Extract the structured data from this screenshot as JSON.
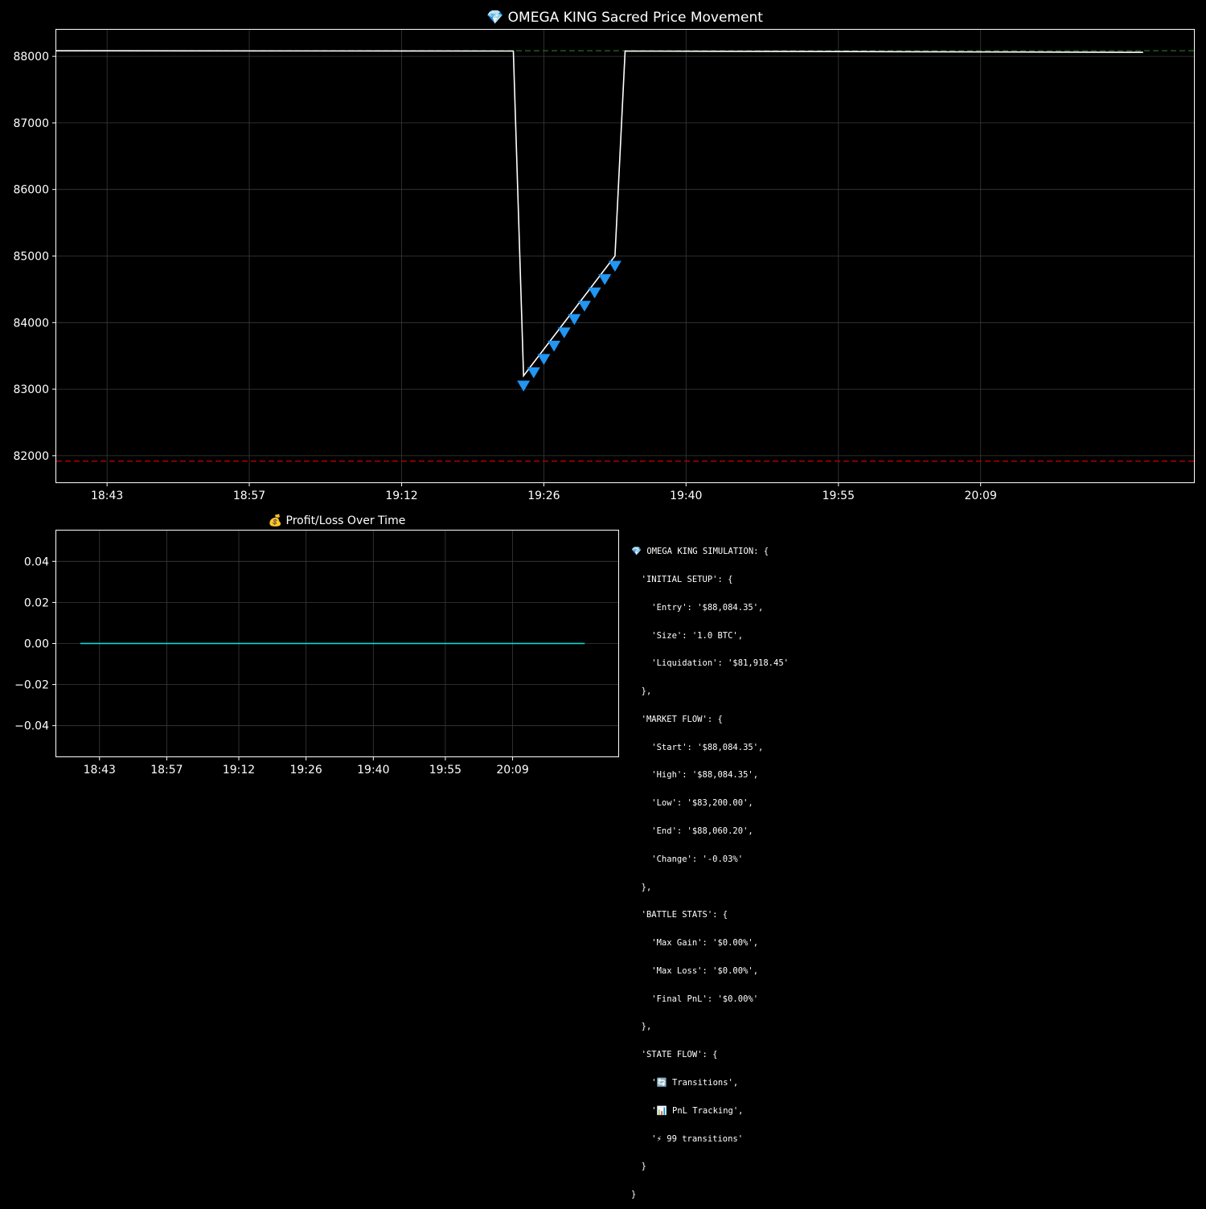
{
  "colors": {
    "background": "#000000",
    "price_line": "#ffffff",
    "entry_line": "#1f5c1f",
    "liquidation_line": "#b00000",
    "sell_marker": "#2196f3",
    "pnl_line": "#00e5e5",
    "grid": "#3a3a3a"
  },
  "chart_data": [
    {
      "type": "line",
      "title": "💎 OMEGA KING Sacred Price Movement",
      "xlabel": "",
      "ylabel": "",
      "x_ticks": [
        "18:43",
        "18:57",
        "19:12",
        "19:26",
        "19:40",
        "19:55",
        "20:09"
      ],
      "y_ticks": [
        "82000",
        "83000",
        "84000",
        "85000",
        "86000",
        "87000",
        "88000"
      ],
      "x_range": [
        "18:38",
        "20:30"
      ],
      "ylim": [
        81600,
        88400
      ],
      "grid": true,
      "series": [
        {
          "kind": "price",
          "points": [
            [
              "18:38",
              88084
            ],
            [
              "19:23",
              88080
            ],
            [
              "19:24",
              83200
            ],
            [
              "19:33",
              85000
            ],
            [
              "19:34",
              88080
            ],
            [
              "20:25",
              88060
            ]
          ]
        },
        {
          "kind": "sell_markers",
          "marker": "triangle-down",
          "points": [
            [
              "19:24",
              83050
            ],
            [
              "19:25",
              83250
            ],
            [
              "19:26",
              83450
            ],
            [
              "19:27",
              83650
            ],
            [
              "19:28",
              83850
            ],
            [
              "19:29",
              84050
            ],
            [
              "19:30",
              84250
            ],
            [
              "19:31",
              84450
            ],
            [
              "19:32",
              84650
            ],
            [
              "19:33",
              84850
            ]
          ]
        }
      ],
      "reference_lines": [
        {
          "kind": "entry",
          "value": 88084.35,
          "style": "dashed"
        },
        {
          "kind": "liquidation",
          "value": 81918.45,
          "style": "dashed"
        }
      ]
    },
    {
      "type": "line",
      "title": "💰 Profit/Loss Over Time",
      "xlabel": "",
      "ylabel": "",
      "x_ticks": [
        "18:43",
        "18:57",
        "19:12",
        "19:26",
        "19:40",
        "19:55",
        "20:09"
      ],
      "y_ticks": [
        "−0.04",
        "−0.02",
        "0.00",
        "0.02",
        "0.04"
      ],
      "x_range": [
        "18:34",
        "20:31"
      ],
      "ylim": [
        -0.055,
        0.055
      ],
      "grid": true,
      "series": [
        {
          "kind": "pnl",
          "points": [
            [
              "18:39",
              0.0
            ],
            [
              "20:24",
              0.0
            ]
          ]
        }
      ]
    }
  ],
  "summary": {
    "lines": [
      "💎 OMEGA KING SIMULATION: {",
      "  'INITIAL SETUP': {",
      "    'Entry': '$88,084.35',",
      "    'Size': '1.0 BTC',",
      "    'Liquidation': '$81,918.45'",
      "  },",
      "  'MARKET FLOW': {",
      "    'Start': '$88,084.35',",
      "    'High': '$88,084.35',",
      "    'Low': '$83,200.00',",
      "    'End': '$88,060.20',",
      "    'Change': '-0.03%'",
      "  },",
      "  'BATTLE STATS': {",
      "    'Max Gain': '$0.00%',",
      "    'Max Loss': '$0.00%',",
      "    'Final PnL': '$0.00%'",
      "  },",
      "  'STATE FLOW': {",
      "    '🔄 Transitions',",
      "    '📊 PnL Tracking',",
      "    '⚡ 99 transitions'",
      "  }",
      "}"
    ]
  }
}
